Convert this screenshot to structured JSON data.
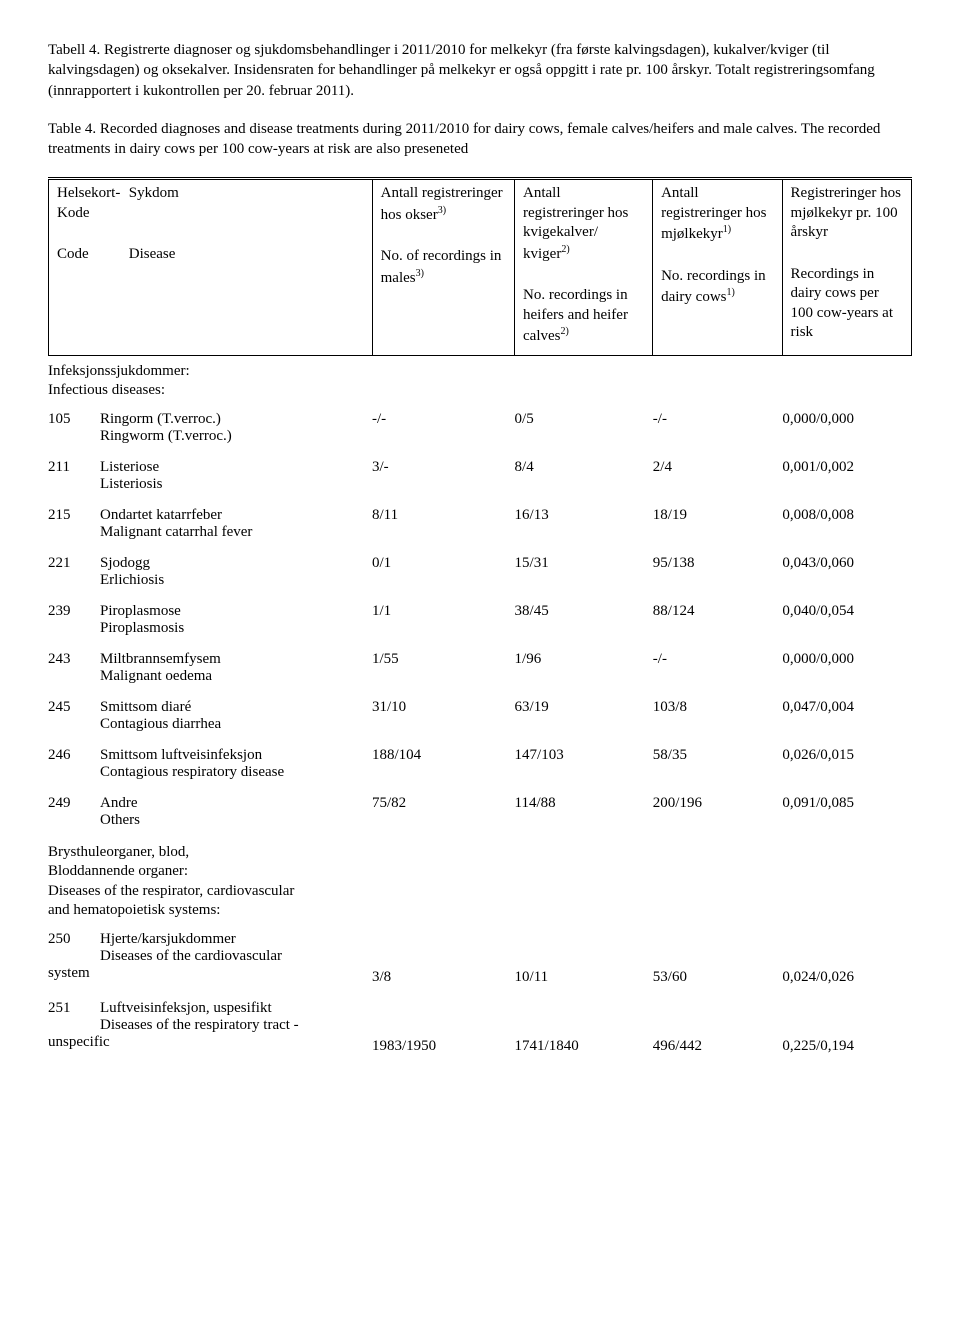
{
  "caption_no_title": "Tabell 4. Registrerte diagnoser og sjukdomsbehandlinger i 2011/2010 for melkekyr (fra første kalvingsdagen), kukalver/kviger (til kalvingsdagen) og oksekalver. Insidensraten for behandlinger på melkekyr er også oppgitt i rate pr. 100 årskyr. Totalt registreringsomfang (innrapportert i kukontrollen per 20. februar 2011).",
  "caption_en_title": "Table 4. Recorded diagnoses and disease treatments during 2011/2010 for dairy cows, female calves/heifers and male calves. The recorded treatments in dairy cows per 100 cow-years at risk are also preseneted",
  "header": {
    "c1": {
      "top_l1": "Helsekort-",
      "top_l2": "Kode",
      "top_r": "Sykdom",
      "bot_l": "Code",
      "bot_r": "Disease"
    },
    "c2": {
      "top": "Antall registreringer hos okser",
      "top_sup": "3)",
      "bot": "No. of recordings in males",
      "bot_sup": "3)"
    },
    "c3": {
      "top": "Antall registreringer hos kvigekalver/ kviger",
      "top_sup": "2)",
      "bot": "No. recordings in heifers and heifer calves",
      "bot_sup": "2)"
    },
    "c4": {
      "top": "Antall registreringer hos mjølkekyr",
      "top_sup": "1)",
      "bot": "No. recordings in dairy cows",
      "bot_sup": "1)"
    },
    "c5": {
      "top": "Registreringer hos mjølkekyr pr. 100 årskyr",
      "bot": "Recordings in dairy cows per 100 cow-years at risk"
    }
  },
  "section1": {
    "heading_l1": "Infeksjonssjukdommer:",
    "heading_l2": "Infectious diseases:",
    "rows": [
      {
        "code": "105",
        "name_no": "Ringorm (T.verroc.)",
        "name_en": "Ringworm (T.verroc.)",
        "v2": "-/-",
        "v3": "0/5",
        "v4": "-/-",
        "v5": "0,000/0,000"
      },
      {
        "code": "211",
        "name_no": "Listeriose",
        "name_en": "Listeriosis",
        "v2": "3/-",
        "v3": "8/4",
        "v4": "2/4",
        "v5": "0,001/0,002"
      },
      {
        "code": "215",
        "name_no": "Ondartet katarrfeber",
        "name_en": "Malignant catarrhal  fever",
        "v2": "8/11",
        "v3": "16/13",
        "v4": "18/19",
        "v5": "0,008/0,008"
      },
      {
        "code": "221",
        "name_no": "Sjodogg",
        "name_en": "Erlichiosis",
        "v2": "0/1",
        "v3": "15/31",
        "v4": "95/138",
        "v5": "0,043/0,060"
      },
      {
        "code": "239",
        "name_no": "Piroplasmose",
        "name_en": "Piroplasmosis",
        "v2": "1/1",
        "v3": "38/45",
        "v4": "88/124",
        "v5": "0,040/0,054"
      },
      {
        "code": "243",
        "name_no": "Miltbrannsemfysem",
        "name_en": "Malignant oedema",
        "v2": "1/55",
        "v3": "1/96",
        "v4": "-/-",
        "v5": "0,000/0,000"
      },
      {
        "code": "245",
        "name_no": "Smittsom diaré",
        "name_en": "Contagious diarrhea",
        "v2": "31/10",
        "v3": "63/19",
        "v4": "103/8",
        "v5": "0,047/0,004"
      },
      {
        "code": "246",
        "name_no": "Smittsom luftveisinfeksjon",
        "name_en": "Contagious respiratory disease",
        "v2": "188/104",
        "v3": "147/103",
        "v4": "58/35",
        "v5": "0,026/0,015"
      },
      {
        "code": "249",
        "name_no": "Andre",
        "name_en": "Others",
        "v2": "75/82",
        "v3": "114/88",
        "v4": "200/196",
        "v5": "0,091/0,085"
      }
    ]
  },
  "section2": {
    "heading_l1": "Brysthuleorganer, blod,",
    "heading_l2": "Bloddannende organer:",
    "heading_l3": "Diseases of the respirator, cardiovascular",
    "heading_l4": "and hematopoietisk systems:",
    "rows": [
      {
        "code": "250",
        "name_no": "Hjerte/karsjukdommer",
        "name_en_l1": "Diseases of the cardiovascular",
        "name_en_l2": "system",
        "v2": "3/8",
        "v3": "10/11",
        "v4": "53/60",
        "v5": "0,024/0,026"
      },
      {
        "code": "251",
        "name_no": "Luftveisinfeksjon, uspesifikt",
        "name_en_l1": "Diseases of the respiratory tract -",
        "name_en_l2": "unspecific",
        "v2": "1983/1950",
        "v3": "1741/1840",
        "v4": "496/442",
        "v5": "0,225/0,194"
      }
    ]
  }
}
